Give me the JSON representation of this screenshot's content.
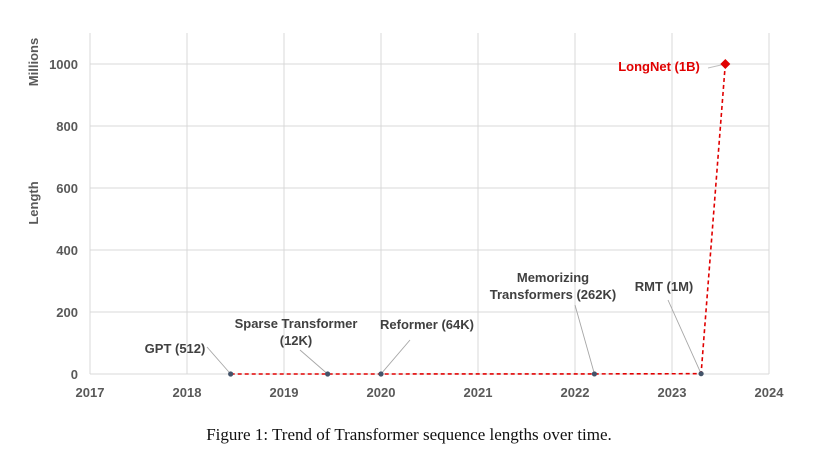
{
  "chart_data": {
    "type": "line",
    "ylabel": "Length",
    "yunit": "Millions",
    "xlim": [
      2017,
      2024
    ],
    "ylim": [
      0,
      1100
    ],
    "xticks": [
      "2017",
      "2018",
      "2019",
      "2020",
      "2021",
      "2022",
      "2023",
      "2024"
    ],
    "yticks": [
      "0",
      "200",
      "400",
      "600",
      "800",
      "1000"
    ],
    "grid": true,
    "series": [
      {
        "color": "#e00000",
        "line_style": "dashed",
        "points": [
          {
            "x": 2018.45,
            "y": 0.000512,
            "label": [
              "GPT (512)"
            ]
          },
          {
            "x": 2019.45,
            "y": 0.012,
            "label": [
              "Sparse Transformer",
              "(12K)"
            ]
          },
          {
            "x": 2020.0,
            "y": 0.064,
            "label": [
              "Reformer (64K)"
            ]
          },
          {
            "x": 2022.2,
            "y": 0.262,
            "label": [
              "Memorizing",
              "Transformers (262K)"
            ]
          },
          {
            "x": 2023.3,
            "y": 1,
            "label": [
              "RMT (1M)"
            ]
          },
          {
            "x": 2023.55,
            "y": 1000,
            "label": [
              "LongNet (1B)"
            ],
            "highlight": true
          }
        ]
      }
    ]
  },
  "caption": "Figure 1: Trend of Transformer sequence lengths over time."
}
